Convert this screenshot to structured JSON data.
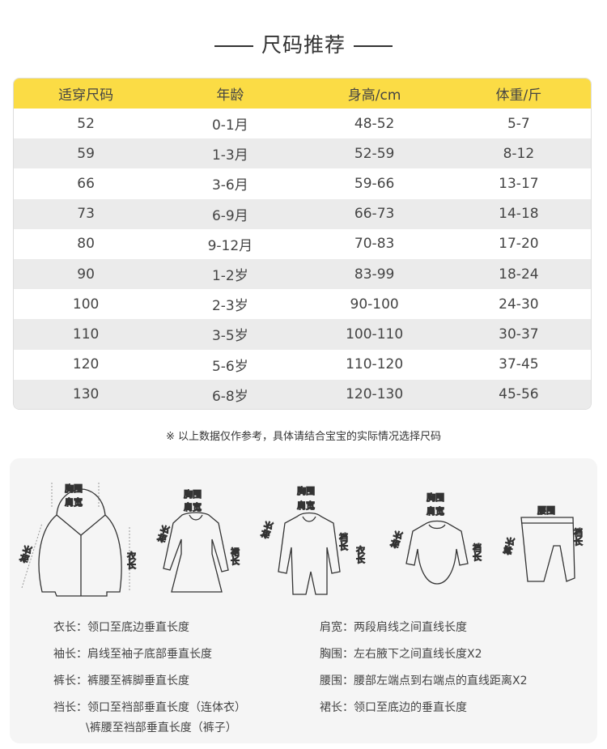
{
  "title": "尺码推荐",
  "table": {
    "headers": [
      "适穿尺码",
      "年龄",
      "身高/cm",
      "体重/斤"
    ],
    "rows": [
      [
        "52",
        "0-1月",
        "48-52",
        "5-7"
      ],
      [
        "59",
        "1-3月",
        "52-59",
        "8-12"
      ],
      [
        "66",
        "3-6月",
        "59-66",
        "13-17"
      ],
      [
        "73",
        "6-9月",
        "66-73",
        "14-18"
      ],
      [
        "80",
        "9-12月",
        "70-83",
        "17-20"
      ],
      [
        "90",
        "1-2岁",
        "83-99",
        "18-24"
      ],
      [
        "100",
        "2-3岁",
        "90-100",
        "24-30"
      ],
      [
        "110",
        "3-5岁",
        "100-110",
        "30-37"
      ],
      [
        "120",
        "5-6岁",
        "110-120",
        "37-45"
      ],
      [
        "130",
        "6-8岁",
        "120-130",
        "45-56"
      ]
    ]
  },
  "note": "※ 以上数据仅作参考，具体请结合宝宝的实际情况选择尺码",
  "labels": {
    "chest": "胸围",
    "shoulder": "肩宽",
    "sleeve": "袖长",
    "length": "衣长",
    "skirt": "裙长",
    "crotch": "裆长",
    "waist": "腰围",
    "pants": "裤长"
  },
  "definitions": {
    "left": [
      "衣长：领口至底边垂直长度",
      "袖长：肩线至袖子底部垂直长度",
      "裤长：裤腰至裤脚垂直长度",
      "裆长：领口至裆部垂直长度（连体衣）",
      "\\裤腰至裆部垂直长度（裤子）"
    ],
    "right": [
      "肩宽：两段肩线之间直线长度",
      "胸围：左右腋下之间直线长度X2",
      "腰围：腰部左端点到右端点的直线距离X2",
      "裙长：领口至底边的垂直长度"
    ]
  },
  "colors": {
    "header": "#fbdc45",
    "stripe": "#ebebeb",
    "panel": "#f5f5f5"
  }
}
